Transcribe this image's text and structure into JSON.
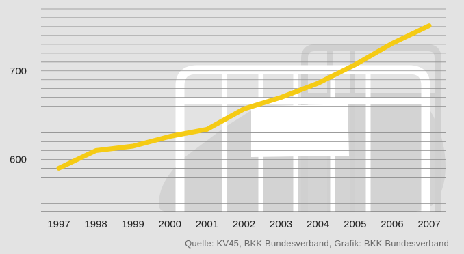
{
  "chart_data": {
    "type": "line",
    "x": [
      "1997",
      "1998",
      "1999",
      "2000",
      "2001",
      "2002",
      "2003",
      "2004",
      "2005",
      "2006",
      "2007"
    ],
    "series": [
      {
        "values": [
          590,
          610,
          615,
          626,
          634,
          657,
          670,
          686,
          707,
          731,
          751
        ]
      }
    ],
    "xlabel": "",
    "ylabel": "",
    "y_ticks": [
      600,
      700
    ],
    "ylim": [
      541,
      780
    ],
    "grid": true,
    "legend": "none",
    "colors": {
      "line": "#f5cb14",
      "grid": "#8e8e8e",
      "background": "#e3e3e3",
      "illustration": "#d3d3d3",
      "illustration_light": "#ffffff"
    }
  },
  "source_text": "Quelle: KV45, BKK Bundesverband, Grafik: BKK Bundesverband"
}
